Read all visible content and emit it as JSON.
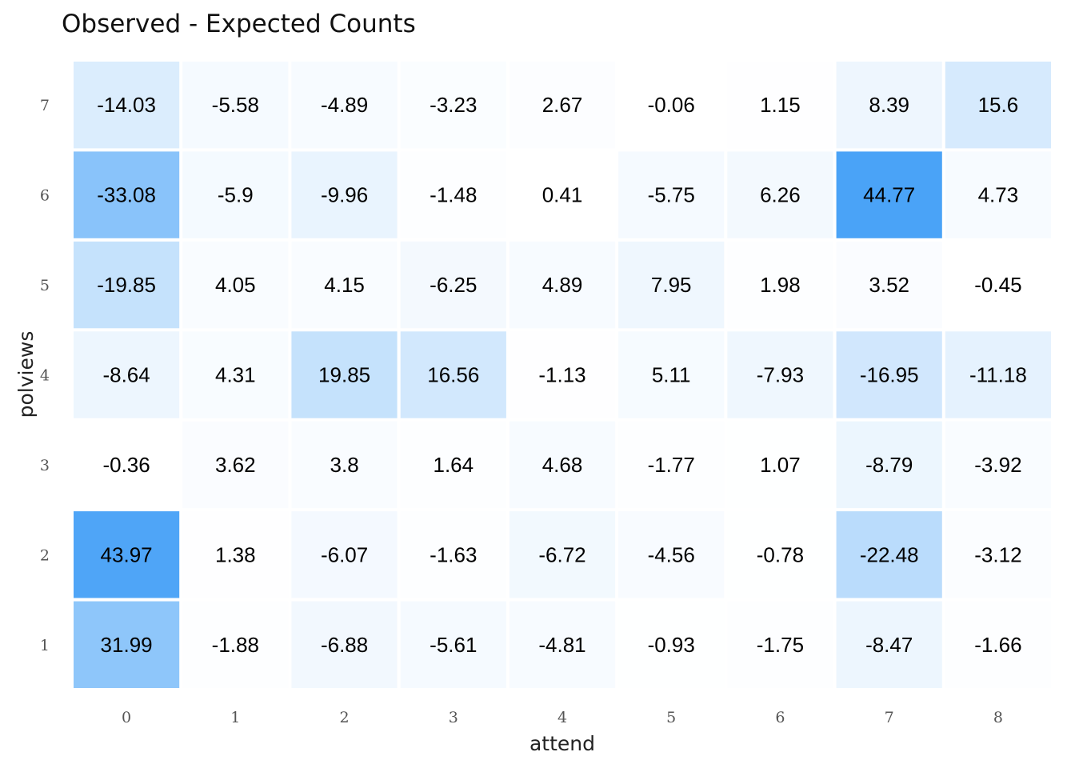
{
  "chart_data": {
    "type": "heatmap",
    "title": "Observed - Expected Counts",
    "xlabel": "attend",
    "ylabel": "polviews",
    "x": [
      "0",
      "1",
      "2",
      "3",
      "4",
      "5",
      "6",
      "7",
      "8"
    ],
    "y": [
      "1",
      "2",
      "3",
      "4",
      "5",
      "6",
      "7"
    ],
    "values": [
      [
        31.99,
        -1.88,
        -6.88,
        -5.61,
        -4.81,
        -0.93,
        -1.75,
        -8.47,
        -1.66
      ],
      [
        43.97,
        1.38,
        -6.07,
        -1.63,
        -6.72,
        -4.56,
        -0.78,
        -22.48,
        -3.12
      ],
      [
        -0.36,
        3.62,
        3.8,
        1.64,
        4.68,
        -1.77,
        1.07,
        -8.79,
        -3.92
      ],
      [
        -8.64,
        4.31,
        19.85,
        16.56,
        -1.13,
        5.11,
        -7.93,
        -16.95,
        -11.18
      ],
      [
        -19.85,
        4.05,
        4.15,
        -6.25,
        4.89,
        7.95,
        1.98,
        3.52,
        -0.45
      ],
      [
        -33.08,
        -5.9,
        -9.96,
        -1.48,
        0.41,
        -5.75,
        6.26,
        44.77,
        4.73
      ],
      [
        -14.03,
        -5.58,
        -4.89,
        -3.23,
        2.67,
        -0.06,
        1.15,
        8.39,
        15.6
      ]
    ],
    "fill_scale": "absolute value",
    "color_low": "#ffffff",
    "color_high": "#4aa3f7",
    "grid": false,
    "legend": "none"
  }
}
